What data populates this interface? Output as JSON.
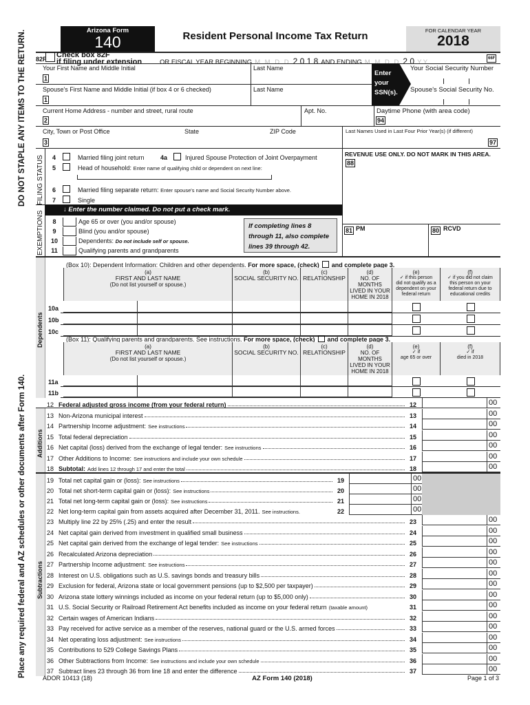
{
  "margin": {
    "top": "DO NOT STAPLE ANY ITEMS TO THE RETURN.",
    "bottom": "Place any required federal and AZ schedules or other documents after Form 140."
  },
  "header": {
    "form_label": "Arizona Form",
    "form_number": "140",
    "title": "Resident Personal Income Tax Return",
    "calendar_label": "FOR CALENDAR YEAR",
    "year": "2018"
  },
  "extension": {
    "code": "82F",
    "line1": "Check box 82F",
    "line2": "if filing under extension",
    "fiscal_label": "OR FISCAL YEAR BEGINNING",
    "begin_placeholder": "M M D D",
    "begin_year": "2 0 1 8",
    "ending_label": "AND ENDING",
    "end_placeholder": "M M D D",
    "end_year": "2 0",
    "end_year_placeholder": "Y Y",
    "code66": "66F"
  },
  "names": {
    "first": "Your First Name and Middle Initial",
    "last": "Last Name",
    "spouse_first": "Spouse's First Name and Middle Initial (if box 4 or 6 checked)",
    "spouse_last": "Last Name",
    "enter_ssn": [
      "Enter",
      "your",
      "SSN(s)."
    ],
    "your_ssn": "Your Social Security Number",
    "spouse_ssn": "Spouse's Social Security No.",
    "box1": "1",
    "box1b": "1"
  },
  "address": {
    "street": "Current Home Address - number and street, rural route",
    "apt": "Apt. No.",
    "phone": "Daytime Phone (with area code)",
    "box2": "2",
    "box94": "94",
    "city": "City, Town or Post Office",
    "state": "State",
    "zip": "ZIP Code",
    "box3": "3",
    "prior_names": "Last Names Used in Last Four Prior Year(s)  (if different)",
    "box97": "97"
  },
  "filing_status": {
    "label": "FILING STATUS",
    "items": [
      {
        "num": "4",
        "text": "Married filing joint return",
        "extra_num": "4a",
        "extra_text": "Injured Spouse Protection of Joint Overpayment"
      },
      {
        "num": "5",
        "text": "Head of household:",
        "note": "Enter name of qualifying child or dependent on next line:"
      },
      {
        "num": "6",
        "text": "Married filing separate return:",
        "note": "Enter spouse's name and Social Security Number above."
      },
      {
        "num": "7",
        "text": "Single"
      }
    ]
  },
  "revenue": {
    "text": "REVENUE USE ONLY. DO NOT MARK IN THIS AREA.",
    "box88": "88",
    "box81": "81",
    "pm": "PM",
    "box80": "80",
    "rcvd": "RCVD"
  },
  "exemptions": {
    "label": "EXEMPTIONS",
    "banner": "Enter the number claimed.  Do not put a check mark.",
    "banner_icon": "arrow-down-icon",
    "items": [
      {
        "num": "8",
        "text": "Age 65 or over (you and/or spouse)"
      },
      {
        "num": "9",
        "text": "Blind (you and/or spouse)"
      },
      {
        "num": "10",
        "text": "Dependents:",
        "note": "Do not include self or spouse."
      },
      {
        "num": "11",
        "text": "Qualifying parents and grandparents"
      }
    ],
    "callout": [
      "If completing lines 8",
      "through 11, also complete",
      "lines 39 through 42."
    ]
  },
  "dependents": {
    "label": "Dependents",
    "box10": {
      "caption_pre": "(Box 10):  Dependent Information:  Children and other dependents.",
      "caption_bold": "For more space, (check)",
      "caption_post": "and complete page 3.",
      "headers": [
        [
          "(a)",
          "FIRST AND LAST NAME",
          "(Do not list yourself or spouse.)"
        ],
        [
          "(b)",
          "SOCIAL SECURITY NO."
        ],
        [
          "(c)",
          "RELATIONSHIP"
        ],
        [
          "(d)",
          "NO. OF MONTHS",
          "LIVED IN YOUR",
          "HOME IN 2018"
        ],
        [
          "(e)",
          "✓ if this person",
          "did not qualify as a",
          "dependent on your",
          "federal return"
        ],
        [
          "(f)",
          "✓ if you did not claim",
          "this person on your",
          "federal return due to",
          "educational credits"
        ]
      ],
      "rows": [
        "10a",
        "10b",
        "10c"
      ]
    },
    "box11": {
      "caption_pre": "(Box 11):  Qualifying parents and grandparents.  See instructions.",
      "caption_bold": "For more space, (check)",
      "caption_post": "and complete page 3.",
      "headers": [
        [
          "(a)",
          "FIRST AND LAST NAME",
          "(Do not list yourself or spouse.)"
        ],
        [
          "(b)",
          "SOCIAL SECURITY NO."
        ],
        [
          "(c)",
          "RELATIONSHIP"
        ],
        [
          "(d)",
          "NO. OF MONTHS",
          "LIVED IN YOUR",
          "HOME IN 2018"
        ],
        [
          "(e)",
          "✓ if",
          "age 65 or over"
        ],
        [
          "(f)",
          "✓ if",
          "died in 2018"
        ]
      ],
      "rows": [
        "11a",
        "11b"
      ]
    }
  },
  "sections": {
    "additions": "Additions",
    "subtractions": "Subtractions"
  },
  "cents": "00",
  "lines": [
    {
      "num": "12",
      "text": "Federal adjusted gross income (from your federal return)",
      "bold": true
    },
    {
      "num": "13",
      "text": "Non-Arizona municipal interest"
    },
    {
      "num": "14",
      "text": "Partnership Income adjustment:",
      "note": "See instructions"
    },
    {
      "num": "15",
      "text": "Total federal depreciation"
    },
    {
      "num": "16",
      "text": "Net capital (loss) derived from the exchange of legal tender:",
      "note": "See instructions"
    },
    {
      "num": "17",
      "text": "Other Additions to Income:",
      "note": "See instructions and include your own schedule"
    },
    {
      "num": "18",
      "text": "Subtotal:",
      "bold": true,
      "note": "Add lines 12 through 17 and enter the total"
    },
    {
      "num": "19",
      "text": "Total net capital gain or (loss):",
      "note": "See instructions",
      "inner": true
    },
    {
      "num": "20",
      "text": "Total net short-term capital gain or (loss):",
      "note": "See instructions",
      "inner": true
    },
    {
      "num": "21",
      "text": "Total net long-term capital gain or (loss):",
      "note": "See instructions",
      "inner": true
    },
    {
      "num": "22",
      "text": "Net long-term capital gain from assets acquired after December 31, 2011.",
      "note": "See instructions.",
      "inner": true,
      "noleader": true
    },
    {
      "num": "23",
      "text": "Multiply line 22 by 25% (.25) and enter the result"
    },
    {
      "num": "24",
      "text": "Net capital gain derived from investment in qualified small business"
    },
    {
      "num": "25",
      "text": "Net capital gain derived from the exchange of legal tender:",
      "note": "See instructions"
    },
    {
      "num": "26",
      "text": "Recalculated Arizona depreciation"
    },
    {
      "num": "27",
      "text": "Partnership Income adjustment:",
      "note": "See instructions"
    },
    {
      "num": "28",
      "text": "Interest on U.S. obligations such as U.S. savings bonds and treasury bills"
    },
    {
      "num": "29",
      "text": "Exclusion for federal, Arizona state or local government pensions (up to $2,500 per taxpayer)"
    },
    {
      "num": "30",
      "text": "Arizona state lottery winnings included as income on your federal return (up to $5,000 only)"
    },
    {
      "num": "31",
      "text": "U.S. Social Security or Railroad Retirement Act benefits included as income on your federal return",
      "note": "(taxable amount)",
      "noleader": true
    },
    {
      "num": "32",
      "text": "Certain wages of American Indians"
    },
    {
      "num": "33",
      "text": "Pay received for active service as a member of the reserves, national guard or the U.S. armed forces"
    },
    {
      "num": "34",
      "text": "Net operating loss adjustment:",
      "note": "See instructions"
    },
    {
      "num": "35",
      "text": "Contributions to 529 College Savings Plans"
    },
    {
      "num": "36",
      "text": "Other Subtractions from Income:",
      "note": "See instructions and include your own schedule"
    },
    {
      "num": "37",
      "text": "Subtract lines 23 through 36 from line 18 and enter the difference"
    }
  ],
  "footer": {
    "left": "ADOR 10413 (18)",
    "center": "AZ Form 140 (2018)",
    "right": "Page 1 of 3"
  }
}
